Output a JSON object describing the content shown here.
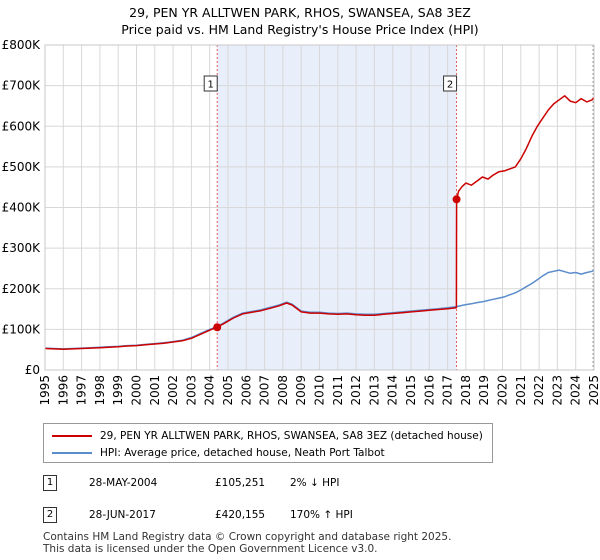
{
  "chart_data": {
    "type": "line",
    "title": "29, PEN YR ALLTWEN PARK, RHOS, SWANSEA, SA8 3EZ",
    "subtitle": "Price paid vs. HM Land Registry's House Price Index (HPI)",
    "xlim": [
      1995,
      2025
    ],
    "ylim": [
      0,
      800000
    ],
    "x_ticks": [
      "1995",
      "1996",
      "1997",
      "1998",
      "1999",
      "2000",
      "2001",
      "2002",
      "2003",
      "2004",
      "2005",
      "2006",
      "2007",
      "2008",
      "2009",
      "2010",
      "2011",
      "2012",
      "2013",
      "2014",
      "2015",
      "2016",
      "2017",
      "2018",
      "2019",
      "2020",
      "2021",
      "2022",
      "2023",
      "2024",
      "2025"
    ],
    "y_ticks": [
      {
        "value": 0,
        "label": "£0"
      },
      {
        "value": 100000,
        "label": "£100K"
      },
      {
        "value": 200000,
        "label": "£200K"
      },
      {
        "value": 300000,
        "label": "£300K"
      },
      {
        "value": 400000,
        "label": "£400K"
      },
      {
        "value": 500000,
        "label": "£500K"
      },
      {
        "value": 600000,
        "label": "£600K"
      },
      {
        "value": 700000,
        "label": "£700K"
      },
      {
        "value": 800000,
        "label": "£800K"
      }
    ],
    "grid": true,
    "shaded_range": [
      2004.41,
      2017.49
    ],
    "series": [
      {
        "name": "29, PEN YR ALLTWEN PARK, RHOS, SWANSEA, SA8 3EZ (detached house)",
        "color": "#cc0000",
        "x": [
          1995,
          1995.5,
          1996,
          1996.5,
          1997,
          1997.5,
          1998,
          1998.5,
          1999,
          1999.5,
          2000,
          2000.5,
          2001,
          2001.5,
          2002,
          2002.5,
          2003,
          2003.5,
          2004,
          2004.41,
          2004.8,
          2005.3,
          2005.8,
          2006.3,
          2006.8,
          2007.3,
          2007.8,
          2008.2,
          2008.5,
          2009,
          2009.5,
          2010,
          2010.5,
          2011,
          2011.5,
          2012,
          2012.5,
          2013,
          2013.5,
          2014,
          2014.5,
          2015,
          2015.5,
          2016,
          2016.5,
          2017,
          2017.48,
          2017.49,
          2017.6,
          2017.8,
          2018,
          2018.3,
          2018.6,
          2018.9,
          2019.2,
          2019.5,
          2019.8,
          2020.1,
          2020.4,
          2020.7,
          2021,
          2021.3,
          2021.6,
          2021.9,
          2022.2,
          2022.5,
          2022.8,
          2023.1,
          2023.4,
          2023.7,
          2024,
          2024.3,
          2024.6,
          2024.9,
          2025
        ],
        "y": [
          53000,
          52000,
          51000,
          52000,
          53000,
          54000,
          55000,
          56000,
          57000,
          59000,
          60000,
          62000,
          64000,
          66000,
          69000,
          72000,
          78000,
          88000,
          98000,
          105251,
          115000,
          128000,
          138000,
          142000,
          146000,
          152000,
          158000,
          165000,
          160000,
          143000,
          140000,
          140000,
          138000,
          137000,
          138000,
          136000,
          135000,
          135000,
          137000,
          139000,
          141000,
          143000,
          145000,
          147000,
          149000,
          151000,
          153000,
          420155,
          440000,
          452000,
          460000,
          455000,
          465000,
          475000,
          470000,
          480000,
          488000,
          490000,
          495000,
          500000,
          520000,
          545000,
          575000,
          600000,
          620000,
          640000,
          655000,
          665000,
          675000,
          662000,
          658000,
          668000,
          660000,
          665000,
          670000
        ]
      },
      {
        "name": "HPI: Average price, detached house, Neath Port Talbot",
        "color": "#5b8ccc",
        "x": [
          1995,
          1995.5,
          1996,
          1996.5,
          1997,
          1997.5,
          1998,
          1998.5,
          1999,
          1999.5,
          2000,
          2000.5,
          2001,
          2001.5,
          2002,
          2002.5,
          2003,
          2003.5,
          2004,
          2004.41,
          2004.8,
          2005.3,
          2005.8,
          2006.3,
          2006.8,
          2007.3,
          2007.8,
          2008.2,
          2008.5,
          2009,
          2009.5,
          2010,
          2010.5,
          2011,
          2011.5,
          2012,
          2012.5,
          2013,
          2013.5,
          2014,
          2014.5,
          2015,
          2015.5,
          2016,
          2016.5,
          2017,
          2017.49,
          2017.8,
          2018,
          2018.3,
          2018.6,
          2018.9,
          2019.2,
          2019.5,
          2019.8,
          2020.1,
          2020.4,
          2020.7,
          2021,
          2021.3,
          2021.6,
          2021.9,
          2022.2,
          2022.5,
          2022.8,
          2023.1,
          2023.4,
          2023.7,
          2024,
          2024.3,
          2024.6,
          2024.9,
          2025
        ],
        "y": [
          54000,
          53000,
          52000,
          53000,
          54000,
          55000,
          56000,
          57000,
          58000,
          60000,
          61000,
          63000,
          65000,
          67000,
          70000,
          73000,
          80000,
          90000,
          100000,
          107000,
          117000,
          130000,
          140000,
          144000,
          148000,
          154000,
          160000,
          167000,
          162000,
          145000,
          142000,
          142000,
          140000,
          139000,
          140000,
          138000,
          137000,
          137000,
          139000,
          141000,
          143000,
          145000,
          147000,
          149000,
          151000,
          153000,
          156000,
          159000,
          161000,
          163000,
          166000,
          168000,
          171000,
          174000,
          177000,
          180000,
          185000,
          190000,
          197000,
          205000,
          213000,
          222000,
          232000,
          240000,
          243000,
          246000,
          242000,
          238000,
          240000,
          236000,
          240000,
          243000,
          246000
        ]
      }
    ],
    "markers": [
      {
        "id": "1",
        "x": 2004.41,
        "y": 105251,
        "label": "1"
      },
      {
        "id": "2",
        "x": 2017.49,
        "y": 420155,
        "label": "2"
      }
    ]
  },
  "legend": {
    "property_label": "29, PEN YR ALLTWEN PARK, RHOS, SWANSEA, SA8 3EZ (detached house)",
    "hpi_label": "HPI: Average price, detached house, Neath Port Talbot"
  },
  "transactions": [
    {
      "num": "1",
      "date": "28-MAY-2004",
      "price": "£105,251",
      "hpi": "2% ↓ HPI"
    },
    {
      "num": "2",
      "date": "28-JUN-2017",
      "price": "£420,155",
      "hpi": "170% ↑ HPI"
    }
  ],
  "footer": {
    "line1": "Contains HM Land Registry data © Crown copyright and database right 2025.",
    "line2": "This data is licensed under the Open Government Licence v3.0."
  },
  "colors": {
    "property": "#cc0000",
    "hpi": "#5b8ccc",
    "shade": "#e8eefa",
    "grid": "#d8d8d8"
  }
}
